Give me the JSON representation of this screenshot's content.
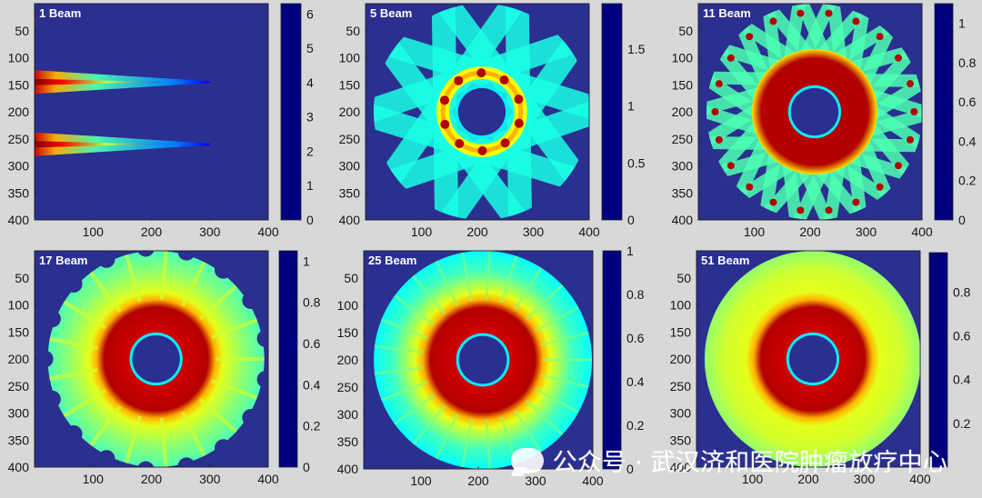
{
  "figure": {
    "watermark_text": "公众号 · 武汉济和医院肿瘤放疗中心",
    "watermark_icon": "wechat-icon"
  },
  "chart_data": [
    {
      "type": "heatmap",
      "title": "1 Beam",
      "beam_count": 1,
      "xlim": [
        0,
        400
      ],
      "ylim": [
        400,
        0
      ],
      "x_ticks": [
        100,
        200,
        300,
        400
      ],
      "y_ticks": [
        50,
        100,
        150,
        200,
        250,
        300,
        350,
        400
      ],
      "colorbar": {
        "min": 0,
        "max": 6.3,
        "ticks": [
          0,
          1,
          2,
          3,
          4,
          5,
          6
        ]
      },
      "features": {
        "beam_centers_y": [
          145,
          260
        ],
        "beam_length_x": [
          0,
          300
        ]
      }
    },
    {
      "type": "heatmap",
      "title": "5 Beam",
      "beam_count": 5,
      "xlim": [
        0,
        400
      ],
      "ylim": [
        400,
        0
      ],
      "x_ticks": [
        100,
        200,
        300,
        400
      ],
      "y_ticks": [
        50,
        100,
        150,
        200,
        250,
        300,
        350,
        400
      ],
      "colorbar": {
        "min": 0,
        "max": 1.9,
        "ticks": [
          0,
          0.5,
          1,
          1.5
        ]
      }
    },
    {
      "type": "heatmap",
      "title": "11 Beam",
      "beam_count": 11,
      "xlim": [
        0,
        400
      ],
      "ylim": [
        400,
        0
      ],
      "x_ticks": [
        100,
        200,
        300,
        400
      ],
      "y_ticks": [
        50,
        100,
        150,
        200,
        250,
        300,
        350,
        400
      ],
      "colorbar": {
        "min": 0,
        "max": 1.1,
        "ticks": [
          0,
          0.2,
          0.4,
          0.6,
          0.8,
          1
        ]
      }
    },
    {
      "type": "heatmap",
      "title": "17 Beam",
      "beam_count": 17,
      "xlim": [
        0,
        400
      ],
      "ylim": [
        400,
        0
      ],
      "x_ticks": [
        100,
        200,
        300,
        400
      ],
      "y_ticks": [
        50,
        100,
        150,
        200,
        250,
        300,
        350,
        400
      ],
      "colorbar": {
        "min": 0,
        "max": 1.05,
        "ticks": [
          0,
          0.2,
          0.4,
          0.6,
          0.8,
          1
        ]
      }
    },
    {
      "type": "heatmap",
      "title": "25 Beam",
      "beam_count": 25,
      "xlim": [
        0,
        400
      ],
      "ylim": [
        400,
        0
      ],
      "x_ticks": [
        100,
        200,
        300,
        400
      ],
      "y_ticks": [
        50,
        100,
        150,
        200,
        250,
        300,
        350,
        400
      ],
      "colorbar": {
        "min": 0,
        "max": 1.0,
        "ticks": [
          0,
          0.2,
          0.4,
          0.6,
          0.8,
          1
        ]
      }
    },
    {
      "type": "heatmap",
      "title": "51 Beam",
      "beam_count": 51,
      "xlim": [
        0,
        400
      ],
      "ylim": [
        400,
        0
      ],
      "x_ticks": [
        100,
        200,
        300,
        400
      ],
      "y_ticks": [
        50,
        100,
        150,
        200,
        250,
        300,
        350,
        400
      ],
      "colorbar": {
        "min": 0,
        "max": 0.98,
        "ticks": [
          0.2,
          0.4,
          0.6,
          0.8
        ]
      }
    }
  ]
}
